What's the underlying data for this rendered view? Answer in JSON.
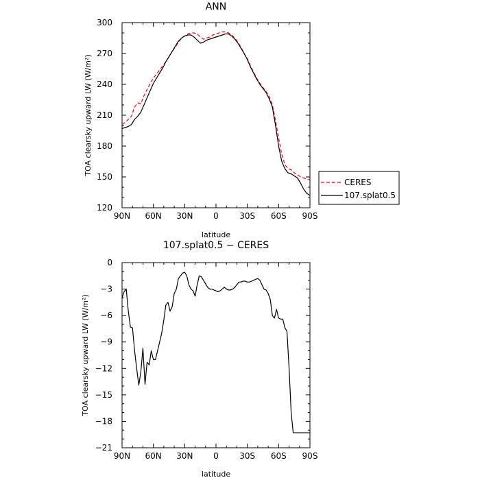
{
  "chart_data": [
    {
      "type": "line",
      "title": "ANN",
      "xlabel": "latitude",
      "ylabel": "TOA clearsky upward LW (W/m²)",
      "xlim": [
        90,
        -90
      ],
      "ylim": [
        120,
        300
      ],
      "x_ticks": [
        90,
        60,
        30,
        0,
        -30,
        -60,
        -90
      ],
      "x_tick_labels": [
        "90N",
        "60N",
        "30N",
        "0",
        "30S",
        "60S",
        "90S"
      ],
      "y_ticks": [
        120,
        150,
        180,
        210,
        240,
        270,
        300
      ],
      "y_tick_labels": [
        "120",
        "150",
        "180",
        "210",
        "240",
        "270",
        "300"
      ],
      "legend": {
        "placement": "outside-right",
        "entries": [
          "CERES",
          "107.splat0.5"
        ]
      },
      "series": [
        {
          "name": "CERES",
          "color": "#ff0000",
          "dash": "dashed",
          "x": [
            90,
            87,
            84,
            81,
            78,
            75,
            72,
            69,
            66,
            63,
            60,
            57,
            54,
            51,
            48,
            45,
            42,
            39,
            36,
            33,
            30,
            27,
            24,
            21,
            18,
            15,
            12,
            9,
            6,
            3,
            0,
            -3,
            -6,
            -9,
            -12,
            -15,
            -18,
            -21,
            -24,
            -27,
            -30,
            -33,
            -36,
            -39,
            -42,
            -45,
            -48,
            -51,
            -54,
            -57,
            -60,
            -63,
            -66,
            -69,
            -72,
            -75,
            -78,
            -81,
            -84,
            -87,
            -90
          ],
          "y": [
            201,
            203,
            206,
            209,
            218,
            222,
            221,
            229,
            235,
            241,
            246,
            250,
            254,
            258,
            262,
            267,
            272,
            276,
            281,
            285,
            287,
            289,
            290,
            290,
            289,
            286,
            284,
            285,
            286,
            288,
            289,
            290,
            291,
            291,
            290,
            288,
            285,
            281,
            276,
            270,
            265,
            258,
            252,
            246,
            241,
            237,
            233,
            228,
            220,
            205,
            188,
            172,
            162,
            158,
            157,
            154,
            152,
            150,
            149,
            148,
            147
          ]
        },
        {
          "name": "107.splat0.5",
          "color": "#000000",
          "dash": "solid",
          "x": [
            90,
            87,
            84,
            81,
            78,
            75,
            72,
            69,
            66,
            63,
            60,
            57,
            54,
            51,
            48,
            45,
            42,
            39,
            36,
            33,
            30,
            27,
            24,
            21,
            18,
            15,
            12,
            9,
            6,
            3,
            0,
            -3,
            -6,
            -9,
            -12,
            -15,
            -18,
            -21,
            -24,
            -27,
            -30,
            -33,
            -36,
            -39,
            -42,
            -45,
            -48,
            -51,
            -54,
            -57,
            -60,
            -63,
            -66,
            -69,
            -72,
            -75,
            -78,
            -81,
            -84,
            -87,
            -90
          ],
          "y": [
            197,
            198,
            199,
            201,
            206,
            209,
            213,
            220,
            227,
            234,
            241,
            246,
            251,
            256,
            262,
            267,
            272,
            277,
            282,
            285,
            287,
            288,
            288,
            286,
            283,
            280,
            281,
            283,
            284,
            285,
            286,
            287,
            288,
            289,
            289,
            287,
            284,
            280,
            275,
            270,
            264,
            257,
            251,
            245,
            240,
            236,
            232,
            226,
            218,
            200,
            180,
            165,
            158,
            154,
            153,
            151,
            149,
            144,
            138,
            134,
            132
          ]
        }
      ]
    },
    {
      "type": "line",
      "title": "107.splat0.5 − CERES",
      "xlabel": "latitude",
      "ylabel": "TOA clearsky upward LW (W/m²)",
      "xlim": [
        90,
        -90
      ],
      "ylim": [
        -21,
        0
      ],
      "x_ticks": [
        90,
        60,
        30,
        0,
        -30,
        -60,
        -90
      ],
      "x_tick_labels": [
        "90N",
        "60N",
        "30N",
        "0",
        "30S",
        "60S",
        "90S"
      ],
      "y_ticks": [
        0,
        -3,
        -6,
        -9,
        -12,
        -15,
        -18,
        -21
      ],
      "y_tick_labels": [
        "0",
        "−3",
        "−6",
        "−9",
        "−12",
        "−15",
        "−18",
        "−21"
      ],
      "series": [
        {
          "color": "#000000",
          "dash": "solid",
          "x": [
            90,
            88,
            86,
            84,
            82,
            80,
            78,
            76,
            74,
            72,
            70,
            68,
            66,
            64,
            62,
            60,
            58,
            56,
            54,
            52,
            50,
            48,
            46,
            44,
            42,
            40,
            38,
            36,
            34,
            32,
            30,
            28,
            26,
            24,
            22,
            20,
            18,
            16,
            14,
            12,
            10,
            8,
            6,
            4,
            2,
            0,
            -2,
            -4,
            -6,
            -8,
            -10,
            -12,
            -14,
            -16,
            -18,
            -20,
            -22,
            -24,
            -26,
            -28,
            -30,
            -32,
            -34,
            -36,
            -38,
            -40,
            -42,
            -44,
            -46,
            -48,
            -50,
            -52,
            -54,
            -56,
            -58,
            -60,
            -62,
            -64,
            -66,
            -68,
            -70,
            -72,
            -74,
            -76,
            -78,
            -80,
            -82,
            -84,
            -86,
            -88,
            -90
          ],
          "y": [
            -4.0,
            -3.3,
            -3.0,
            -5.5,
            -7.3,
            -7.4,
            -10.0,
            -12.0,
            -13.9,
            -12.4,
            -9.7,
            -13.8,
            -11.3,
            -11.6,
            -10.0,
            -11.0,
            -11.0,
            -10.0,
            -9.0,
            -8.0,
            -6.5,
            -4.8,
            -4.5,
            -5.5,
            -5.0,
            -3.5,
            -3.0,
            -1.8,
            -1.5,
            -1.2,
            -1.1,
            -1.5,
            -2.5,
            -3.0,
            -3.2,
            -3.8,
            -2.5,
            -1.5,
            -1.6,
            -2.0,
            -2.4,
            -2.8,
            -3.0,
            -3.0,
            -3.1,
            -3.2,
            -3.3,
            -3.2,
            -3.0,
            -2.8,
            -3.0,
            -3.1,
            -3.1,
            -3.0,
            -2.8,
            -2.5,
            -2.2,
            -2.2,
            -2.1,
            -2.1,
            -2.2,
            -2.2,
            -2.1,
            -2.0,
            -1.9,
            -1.8,
            -2.0,
            -2.5,
            -3.0,
            -3.1,
            -3.5,
            -4.2,
            -6.0,
            -6.3,
            -5.3,
            -6.3,
            -6.4,
            -6.4,
            -7.4,
            -7.8,
            -12.0,
            -17.0,
            -19.3,
            -19.3,
            -19.3,
            -19.3,
            -19.3,
            -19.3,
            -19.3,
            -19.3,
            -19.3
          ]
        }
      ]
    }
  ]
}
